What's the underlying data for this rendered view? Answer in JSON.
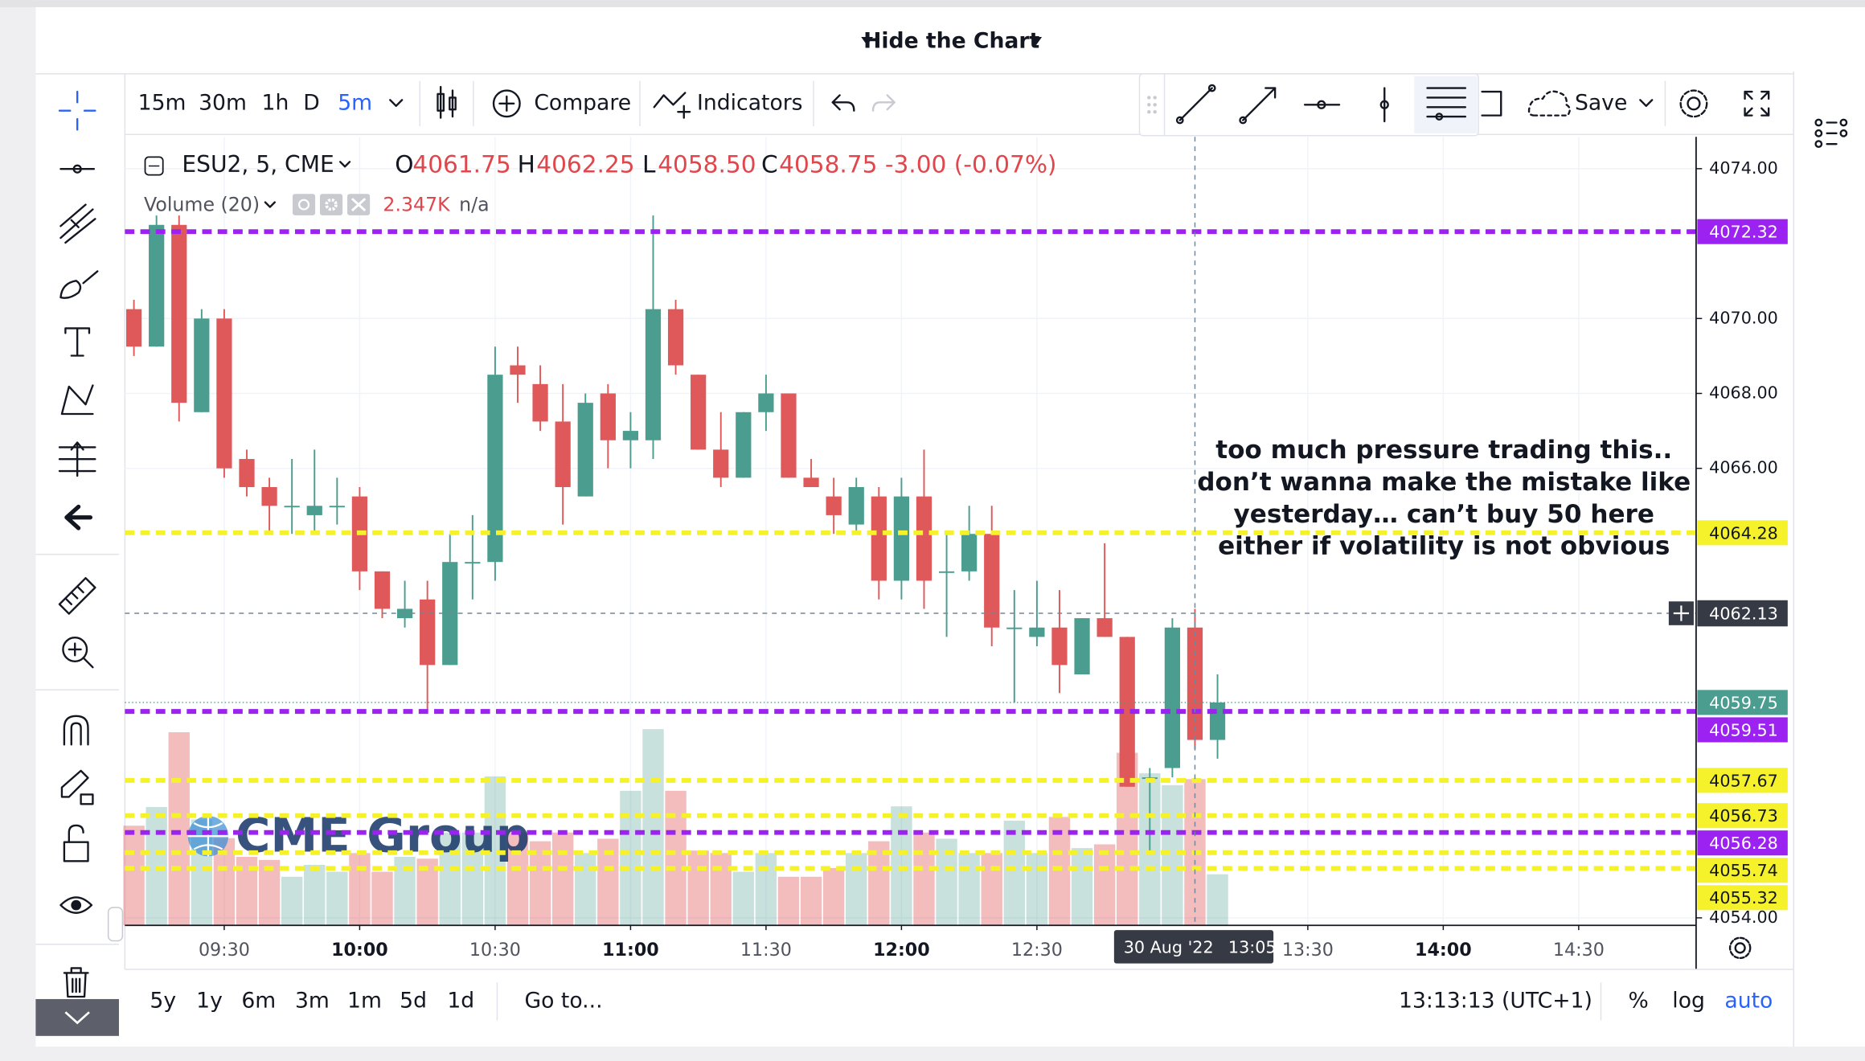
{
  "header": {
    "toggle": "Hide the Chart"
  },
  "toolbar": {
    "intervals": [
      "15m",
      "30m",
      "1h",
      "D",
      "5m"
    ],
    "compare": "Compare",
    "indicators": "Indicators",
    "save": "Save"
  },
  "legend": {
    "symbol": "ESU2, 5, CME",
    "ohlc": [
      {
        "label": "O",
        "value": "4061.75"
      },
      {
        "label": "H",
        "value": "4062.25"
      },
      {
        "label": "L",
        "value": "4058.50"
      },
      {
        "label": "C",
        "value": "4058.75"
      }
    ],
    "change": "-3.00 (-0.07%)",
    "volume_study": "Volume (20)",
    "volume_value": "2.347K",
    "volume_ma": "n/a"
  },
  "watermark": "CME Group",
  "annotation": [
    "too much pressure trading this..",
    "don’t wanna make the mistake like",
    "yesterday… can’t buy 50 here",
    "either if volatility is not obvious"
  ],
  "chart_data": {
    "type": "candlestick",
    "x": [
      "09:10",
      "09:15",
      "09:20",
      "09:25",
      "09:30",
      "09:35",
      "09:40",
      "09:45",
      "09:50",
      "09:55",
      "10:00",
      "10:05",
      "10:10",
      "10:15",
      "10:20",
      "10:25",
      "10:30",
      "10:35",
      "10:40",
      "10:45",
      "10:50",
      "10:55",
      "11:00",
      "11:05",
      "11:10",
      "11:15",
      "11:20",
      "11:25",
      "11:30",
      "11:35",
      "11:40",
      "11:45",
      "11:50",
      "11:55",
      "12:00",
      "12:05",
      "12:10",
      "12:15",
      "12:20",
      "12:25",
      "12:30",
      "12:35",
      "12:40",
      "12:45",
      "12:50",
      "12:55",
      "13:00",
      "13:05",
      "13:10"
    ],
    "open": [
      4070.25,
      4069.25,
      4072.5,
      4067.5,
      4070,
      4066.25,
      4065.5,
      4065,
      4064.75,
      4065,
      4065.25,
      4063.25,
      4062,
      4062.5,
      4060.75,
      4063.5,
      4063.5,
      4068.75,
      4068.25,
      4067.25,
      4065.25,
      4068,
      4066.75,
      4066.75,
      4070.25,
      4068.5,
      4066.5,
      4065.75,
      4067.5,
      4068,
      4065.75,
      4065.25,
      4064.5,
      4065.25,
      4063,
      4065.25,
      4063.25,
      4063.25,
      4064.25,
      4061.75,
      4061.5,
      4061.75,
      4060.5,
      4062,
      4061.5,
      4057.75,
      4058,
      4061.75,
      4058.75
    ],
    "high": [
      4070.5,
      4072.75,
      4072.75,
      4070.25,
      4070.25,
      4066.5,
      4065.75,
      4066.25,
      4066.5,
      4065.75,
      4065.5,
      4063.25,
      4063,
      4063,
      4064.25,
      4064.75,
      4069.25,
      4069.25,
      4068.75,
      4068.25,
      4068,
      4068.25,
      4067.5,
      4072.75,
      4070.5,
      4068.5,
      4067.5,
      4067.5,
      4068.5,
      4068,
      4066.25,
      4065.75,
      4065.75,
      4065.5,
      4065.75,
      4066.5,
      4064.25,
      4065,
      4065,
      4062.75,
      4063,
      4062.75,
      4062,
      4064,
      4061.5,
      4058,
      4062,
      4062.25,
      4060.5
    ],
    "low": [
      4069,
      4069.25,
      4067.25,
      4067.5,
      4065.75,
      4065.25,
      4064.25,
      4064.25,
      4064.25,
      4064.5,
      4062.75,
      4062,
      4061.75,
      4059.5,
      4060.75,
      4062.5,
      4063,
      4067.75,
      4067,
      4064.5,
      4065.25,
      4066,
      4066,
      4066.25,
      4068.5,
      4066.5,
      4065.5,
      4065.75,
      4067,
      4065.75,
      4065.5,
      4064.25,
      4064.25,
      4062.5,
      4062.5,
      4062.25,
      4061.5,
      4063,
      4061.25,
      4059.75,
      4061.25,
      4060,
      4060.5,
      4061.5,
      4057.5,
      4055.75,
      4057.75,
      4058.5,
      4058.25
    ],
    "close": [
      4069.25,
      4072.5,
      4067.75,
      4070,
      4066,
      4065.5,
      4065,
      4065,
      4065,
      4065,
      4063.25,
      4062.25,
      4062.25,
      4060.75,
      4063.5,
      4063.5,
      4068.5,
      4068.5,
      4067.25,
      4065.5,
      4067.75,
      4066.75,
      4067,
      4070.25,
      4068.75,
      4066.5,
      4065.75,
      4067.5,
      4068,
      4065.75,
      4065.5,
      4064.75,
      4065.5,
      4063,
      4065.25,
      4063,
      4063.25,
      4064.25,
      4061.75,
      4061.75,
      4061.75,
      4060.75,
      4062,
      4061.5,
      4057.5,
      4057.75,
      4061.75,
      4058.75,
      4059.75
    ],
    "volume": [
      1600,
      1900,
      3100,
      1700,
      1400,
      1100,
      1050,
      780,
      970,
      860,
      1160,
      860,
      1100,
      1070,
      1490,
      1490,
      2390,
      1490,
      1350,
      1490,
      1160,
      1390,
      2160,
      3150,
      2160,
      1200,
      1160,
      860,
      1160,
      780,
      780,
      920,
      1160,
      1350,
      1910,
      1490,
      1390,
      1160,
      1160,
      1680,
      1160,
      1740,
      1240,
      1300,
      2770,
      2440,
      2250,
      2347,
      820
    ],
    "up_color": "#4a9d8f",
    "down_color": "#e0595a",
    "xlim": [
      "09:08",
      "14:56"
    ],
    "xticks": [
      "09:30",
      "10:00",
      "10:30",
      "11:00",
      "11:30",
      "12:00",
      "12:30",
      "13:30",
      "14:00",
      "14:30"
    ],
    "ylim": [
      4053.8,
      4074.85
    ],
    "yticks": [
      {
        "value": 4054,
        "label": "4054.00"
      },
      {
        "value": 4066,
        "label": "4066.00"
      },
      {
        "value": 4068,
        "label": "4068.00"
      },
      {
        "value": 4070,
        "label": "4070.00"
      },
      {
        "value": 4074,
        "label": "4074.00"
      }
    ],
    "grid": true,
    "levels": [
      {
        "value": 4072.32,
        "color": "#9b22f0"
      },
      {
        "value": 4064.28,
        "color": "#f5f22c"
      },
      {
        "value": 4059.51,
        "color": "#9b22f0"
      },
      {
        "value": 4057.67,
        "color": "#f5f22c"
      },
      {
        "value": 4056.73,
        "color": "#f5f22c"
      },
      {
        "value": 4056.28,
        "color": "#9b22f0"
      },
      {
        "value": 4055.74,
        "color": "#f5f22c"
      },
      {
        "value": 4055.32,
        "color": "#f5f22c"
      }
    ],
    "last_price": 4059.75,
    "crosshair": {
      "x": "13:05",
      "date": "30 Aug '22",
      "price": 4062.13
    }
  },
  "footer": {
    "ranges": [
      "5y",
      "1y",
      "6m",
      "3m",
      "1m",
      "5d",
      "1d"
    ],
    "goto": "Go to...",
    "clock": "13:13:13 (UTC+1)",
    "percent": "%",
    "log": "log",
    "auto": "auto"
  }
}
